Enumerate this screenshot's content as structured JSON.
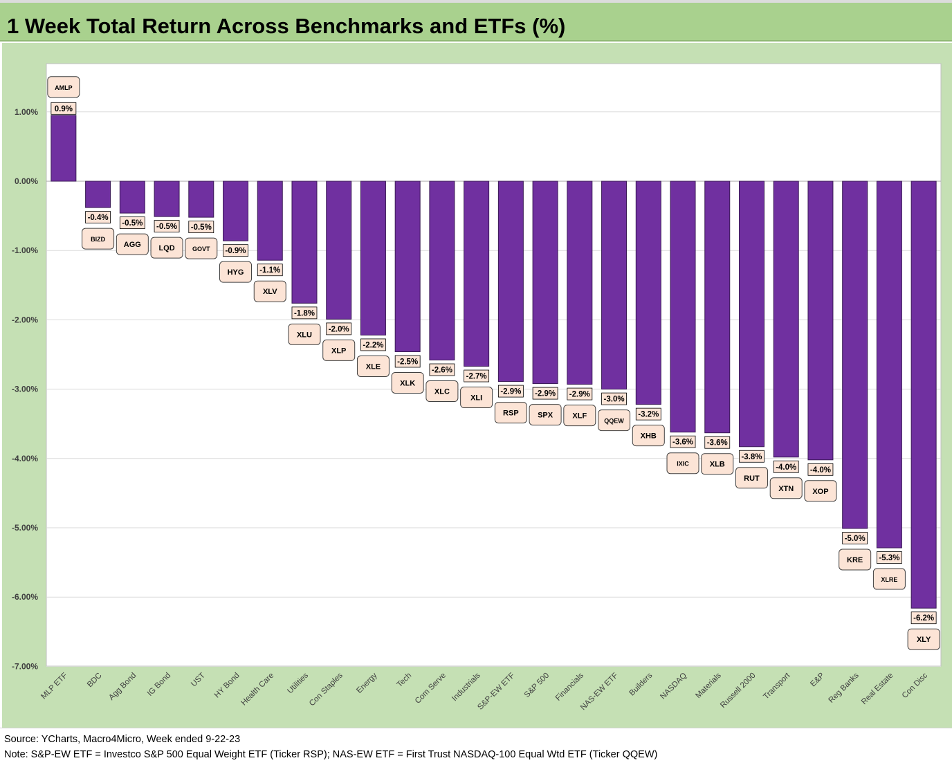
{
  "title": "1 Week Total Return Across Benchmarks and ETFs (%)",
  "footer": {
    "source": "Source: YCharts, Macro4Micro, Week ended 9-22-23",
    "note": "Note: S&P-EW ETF = Investco S&P 500 Equal Weight ETF (Ticker RSP); NAS-EW ETF = First Trust NASDAQ-100 Equal Wtd ETF (Ticker QQEW)"
  },
  "colors": {
    "bar": "#7030a0",
    "label_fill": "#fce4d6",
    "title_bg": "#a9d18e",
    "chart_bg": "#c5e0b4"
  },
  "chart_data": {
    "type": "bar",
    "title": "1 Week Total Return Across Benchmarks and ETFs (%)",
    "categories": [
      "MLP ETF",
      "BDC",
      "Agg Bond",
      "IG Bond",
      "UST",
      "HY Bond",
      "Health Care",
      "Utilities",
      "Con Staples",
      "Energy",
      "Tech",
      "Com Serve",
      "Industrials",
      "S&P-EW ETF",
      "S&P 500",
      "Financials",
      "NAS-EW ETF",
      "Builders",
      "NASDAQ",
      "Materials",
      "Russell 2000",
      "Transport",
      "E&P",
      "Reg Banks",
      "Real Estate",
      "Con Disc"
    ],
    "tickers": [
      "AMLP",
      "BIZD",
      "AGG",
      "LQD",
      "GOVT",
      "HYG",
      "XLV",
      "XLU",
      "XLP",
      "XLE",
      "XLK",
      "XLC",
      "XLI",
      "RSP",
      "SPX",
      "XLF",
      "QQEW",
      "XHB",
      "IXIC",
      "XLB",
      "RUT",
      "XTN",
      "XOP",
      "KRE",
      "XLRE",
      "XLY"
    ],
    "values": [
      0.95,
      -0.38,
      -0.46,
      -0.51,
      -0.52,
      -0.86,
      -1.14,
      -1.76,
      -1.99,
      -2.22,
      -2.46,
      -2.58,
      -2.67,
      -2.89,
      -2.92,
      -2.93,
      -3.0,
      -3.22,
      -3.62,
      -3.63,
      -3.83,
      -3.98,
      -4.02,
      -5.01,
      -5.29,
      -6.16
    ],
    "value_labels": [
      "0.9%",
      "-0.4%",
      "-0.5%",
      "-0.5%",
      "-0.5%",
      "-0.9%",
      "-1.1%",
      "-1.8%",
      "-2.0%",
      "-2.2%",
      "-2.5%",
      "-2.6%",
      "-2.7%",
      "-2.9%",
      "-2.9%",
      "-2.9%",
      "-3.0%",
      "-3.2%",
      "-3.6%",
      "-3.6%",
      "-3.8%",
      "-4.0%",
      "-4.0%",
      "-5.0%",
      "-5.3%",
      "-6.2%"
    ],
    "ylim": [
      -7.0,
      1.7
    ],
    "yticks": [
      1.0,
      0.0,
      -1.0,
      -2.0,
      -3.0,
      -4.0,
      -5.0,
      -6.0,
      -7.0
    ],
    "ytick_labels": [
      "1.00%",
      "0.00%",
      "-1.00%",
      "-2.00%",
      "-3.00%",
      "-4.00%",
      "-5.00%",
      "-6.00%",
      "-7.00%"
    ],
    "xlabel": "",
    "ylabel": "",
    "grid": true,
    "legend": "none"
  }
}
